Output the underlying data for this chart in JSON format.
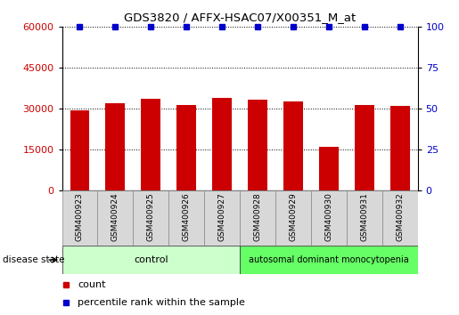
{
  "title": "GDS3820 / AFFX-HSAC07/X00351_M_at",
  "samples": [
    "GSM400923",
    "GSM400924",
    "GSM400925",
    "GSM400926",
    "GSM400927",
    "GSM400928",
    "GSM400929",
    "GSM400930",
    "GSM400931",
    "GSM400932"
  ],
  "counts": [
    29500,
    32000,
    33500,
    31500,
    33800,
    33200,
    32500,
    16000,
    31500,
    31000
  ],
  "bar_color": "#cc0000",
  "dot_color": "#0000cc",
  "ylim_left": [
    0,
    60000
  ],
  "ylim_right": [
    0,
    100
  ],
  "yticks_left": [
    0,
    15000,
    30000,
    45000,
    60000
  ],
  "yticks_right": [
    0,
    25,
    50,
    75,
    100
  ],
  "n_control": 5,
  "n_disease": 5,
  "control_label": "control",
  "disease_label": "autosomal dominant monocytopenia",
  "disease_state_label": "disease state",
  "control_color": "#ccffcc",
  "disease_color": "#66ff66",
  "legend_count_label": "count",
  "legend_pct_label": "percentile rank within the sample",
  "tick_label_bg": "#d8d8d8",
  "grid_color": "#000000"
}
